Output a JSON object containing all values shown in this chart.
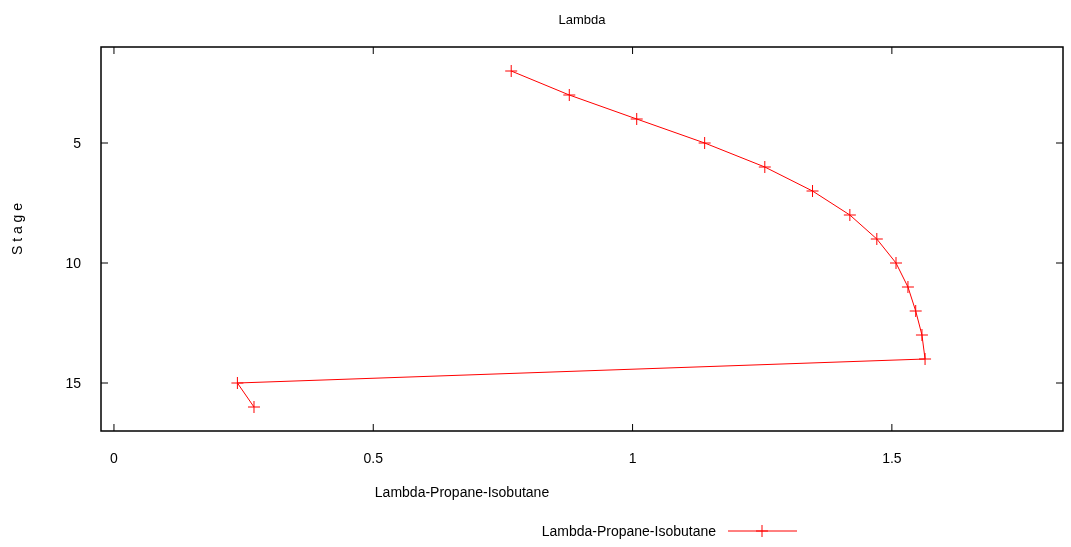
{
  "chart_data": {
    "type": "line",
    "title": "Lambda",
    "xlabel": "Lambda-Propane-Isobutane",
    "ylabel": "S t a g e",
    "xlim": [
      -0.025,
      1.83
    ],
    "ylim": [
      17,
      1
    ],
    "xticks": [
      0,
      0.5,
      1,
      1.5
    ],
    "yticks": [
      5,
      10,
      15
    ],
    "grid": false,
    "legend": "bottom",
    "marker": "cross",
    "line_style": "solid",
    "series": [
      {
        "name": "Lambda-Propane-Isobutane",
        "color": "#ff0000",
        "x": [
          0.766,
          0.878,
          1.008,
          1.139,
          1.255,
          1.347,
          1.419,
          1.471,
          1.508,
          1.531,
          1.546,
          1.558,
          1.564,
          0.238,
          0.27
        ],
        "values": [
          2,
          3,
          4,
          5,
          6,
          7,
          8,
          9,
          10,
          11,
          12,
          13,
          14,
          15,
          16
        ]
      }
    ]
  }
}
